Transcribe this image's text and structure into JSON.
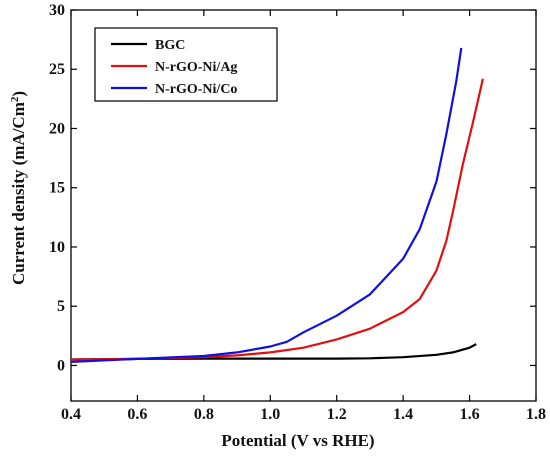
{
  "chart_data": {
    "type": "line",
    "xlabel": "Potential (V vs RHE)",
    "ylabel": "Current density (mA/Cm",
    "ylabel_sup": "2",
    "ylabel_end": ")",
    "xlim": [
      0.4,
      1.8
    ],
    "ylim": [
      -3,
      30
    ],
    "x_ticks": [
      "0.4",
      "0.6",
      "0.8",
      "1.0",
      "1.2",
      "1.4",
      "1.6",
      "1.8"
    ],
    "y_ticks": [
      "0",
      "5",
      "10",
      "15",
      "20",
      "25",
      "30"
    ],
    "legend_position": "top-left",
    "grid": false,
    "series": [
      {
        "name": "BGC",
        "color": "#000000",
        "points": [
          [
            0.4,
            0.5
          ],
          [
            0.6,
            0.55
          ],
          [
            0.8,
            0.58
          ],
          [
            1.0,
            0.58
          ],
          [
            1.2,
            0.58
          ],
          [
            1.3,
            0.6
          ],
          [
            1.4,
            0.7
          ],
          [
            1.5,
            0.9
          ],
          [
            1.55,
            1.1
          ],
          [
            1.6,
            1.5
          ],
          [
            1.62,
            1.8
          ]
        ]
      },
      {
        "name": "N-rGO-Ni/Ag",
        "color": "#e01010",
        "points": [
          [
            0.4,
            0.5
          ],
          [
            0.6,
            0.55
          ],
          [
            0.8,
            0.7
          ],
          [
            0.9,
            0.85
          ],
          [
            1.0,
            1.1
          ],
          [
            1.1,
            1.5
          ],
          [
            1.2,
            2.2
          ],
          [
            1.3,
            3.1
          ],
          [
            1.4,
            4.5
          ],
          [
            1.45,
            5.6
          ],
          [
            1.5,
            8.0
          ],
          [
            1.53,
            10.5
          ],
          [
            1.55,
            13.0
          ],
          [
            1.58,
            17.0
          ],
          [
            1.61,
            20.5
          ],
          [
            1.64,
            24.2
          ]
        ]
      },
      {
        "name": "N-rGO-Ni/Co",
        "color": "#1010e0",
        "points": [
          [
            0.4,
            0.3
          ],
          [
            0.6,
            0.55
          ],
          [
            0.8,
            0.8
          ],
          [
            0.9,
            1.1
          ],
          [
            1.0,
            1.6
          ],
          [
            1.05,
            2.0
          ],
          [
            1.1,
            2.8
          ],
          [
            1.2,
            4.2
          ],
          [
            1.3,
            6.0
          ],
          [
            1.4,
            9.0
          ],
          [
            1.45,
            11.5
          ],
          [
            1.5,
            15.5
          ],
          [
            1.53,
            19.5
          ],
          [
            1.56,
            24.0
          ],
          [
            1.575,
            26.8
          ]
        ]
      }
    ]
  }
}
